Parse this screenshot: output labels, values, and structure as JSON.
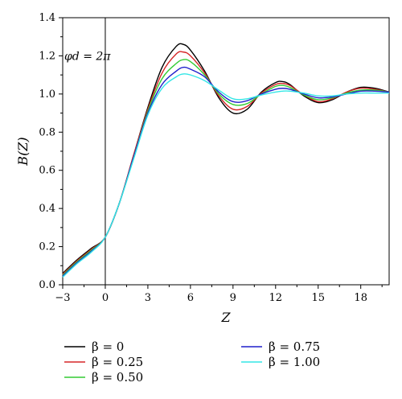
{
  "chart_data": {
    "type": "line",
    "title": "",
    "xlabel": "Z",
    "ylabel": "B(Z)",
    "xlim": [
      -3,
      20
    ],
    "ylim": [
      0,
      1.4
    ],
    "xticks": [
      -3,
      0,
      3,
      6,
      9,
      12,
      15,
      18
    ],
    "yticks": [
      0.0,
      0.2,
      0.4,
      0.6,
      0.8,
      1.0,
      1.2,
      1.4
    ],
    "xtick_labels": [
      "−3",
      "0",
      "3",
      "6",
      "9",
      "12",
      "15",
      "18"
    ],
    "ytick_labels": [
      "0.0",
      "0.2",
      "0.4",
      "0.6",
      "0.8",
      "1.0",
      "1.2",
      "1.4"
    ],
    "grid": false,
    "legend_position": "below",
    "annotation": "φd = 2π",
    "vertical_line_at_x": 0,
    "x": [
      -3,
      -2,
      -1,
      0,
      1,
      2,
      3,
      4,
      5,
      5.5,
      6,
      7,
      8,
      9,
      10,
      11,
      12,
      12.5,
      13,
      14,
      15,
      16,
      17,
      18,
      19,
      20
    ],
    "series": [
      {
        "name": "β = 0",
        "color": "#000000",
        "values": [
          0.06,
          0.13,
          0.19,
          0.25,
          0.43,
          0.68,
          0.93,
          1.14,
          1.25,
          1.26,
          1.23,
          1.12,
          0.98,
          0.9,
          0.92,
          1.01,
          1.06,
          1.065,
          1.05,
          0.99,
          0.955,
          0.97,
          1.01,
          1.035,
          1.03,
          1.01
        ]
      },
      {
        "name": "β = 0.25",
        "color": "#d62728",
        "values": [
          0.055,
          0.125,
          0.185,
          0.25,
          0.43,
          0.68,
          0.92,
          1.11,
          1.21,
          1.22,
          1.2,
          1.11,
          0.99,
          0.92,
          0.935,
          1.005,
          1.05,
          1.055,
          1.045,
          0.995,
          0.96,
          0.975,
          1.01,
          1.03,
          1.025,
          1.01
        ]
      },
      {
        "name": "β = 0.50",
        "color": "#33cc33",
        "values": [
          0.05,
          0.12,
          0.18,
          0.25,
          0.43,
          0.67,
          0.91,
          1.08,
          1.16,
          1.18,
          1.17,
          1.1,
          1.0,
          0.945,
          0.95,
          1.0,
          1.04,
          1.045,
          1.035,
          0.995,
          0.97,
          0.98,
          1.005,
          1.02,
          1.02,
          1.01
        ]
      },
      {
        "name": "β = 0.75",
        "color": "#1f1fcc",
        "values": [
          0.045,
          0.115,
          0.175,
          0.25,
          0.43,
          0.67,
          0.9,
          1.05,
          1.12,
          1.14,
          1.13,
          1.09,
          1.01,
          0.96,
          0.965,
          1.0,
          1.025,
          1.03,
          1.025,
          1.0,
          0.98,
          0.985,
          1.0,
          1.015,
          1.015,
          1.01
        ]
      },
      {
        "name": "β = 1.00",
        "color": "#33e6e6",
        "values": [
          0.04,
          0.11,
          0.17,
          0.25,
          0.43,
          0.66,
          0.89,
          1.03,
          1.09,
          1.105,
          1.1,
          1.07,
          1.02,
          0.975,
          0.975,
          0.995,
          1.01,
          1.015,
          1.015,
          1.005,
          0.99,
          0.99,
          1.0,
          1.005,
          1.005,
          1.005
        ]
      }
    ]
  }
}
